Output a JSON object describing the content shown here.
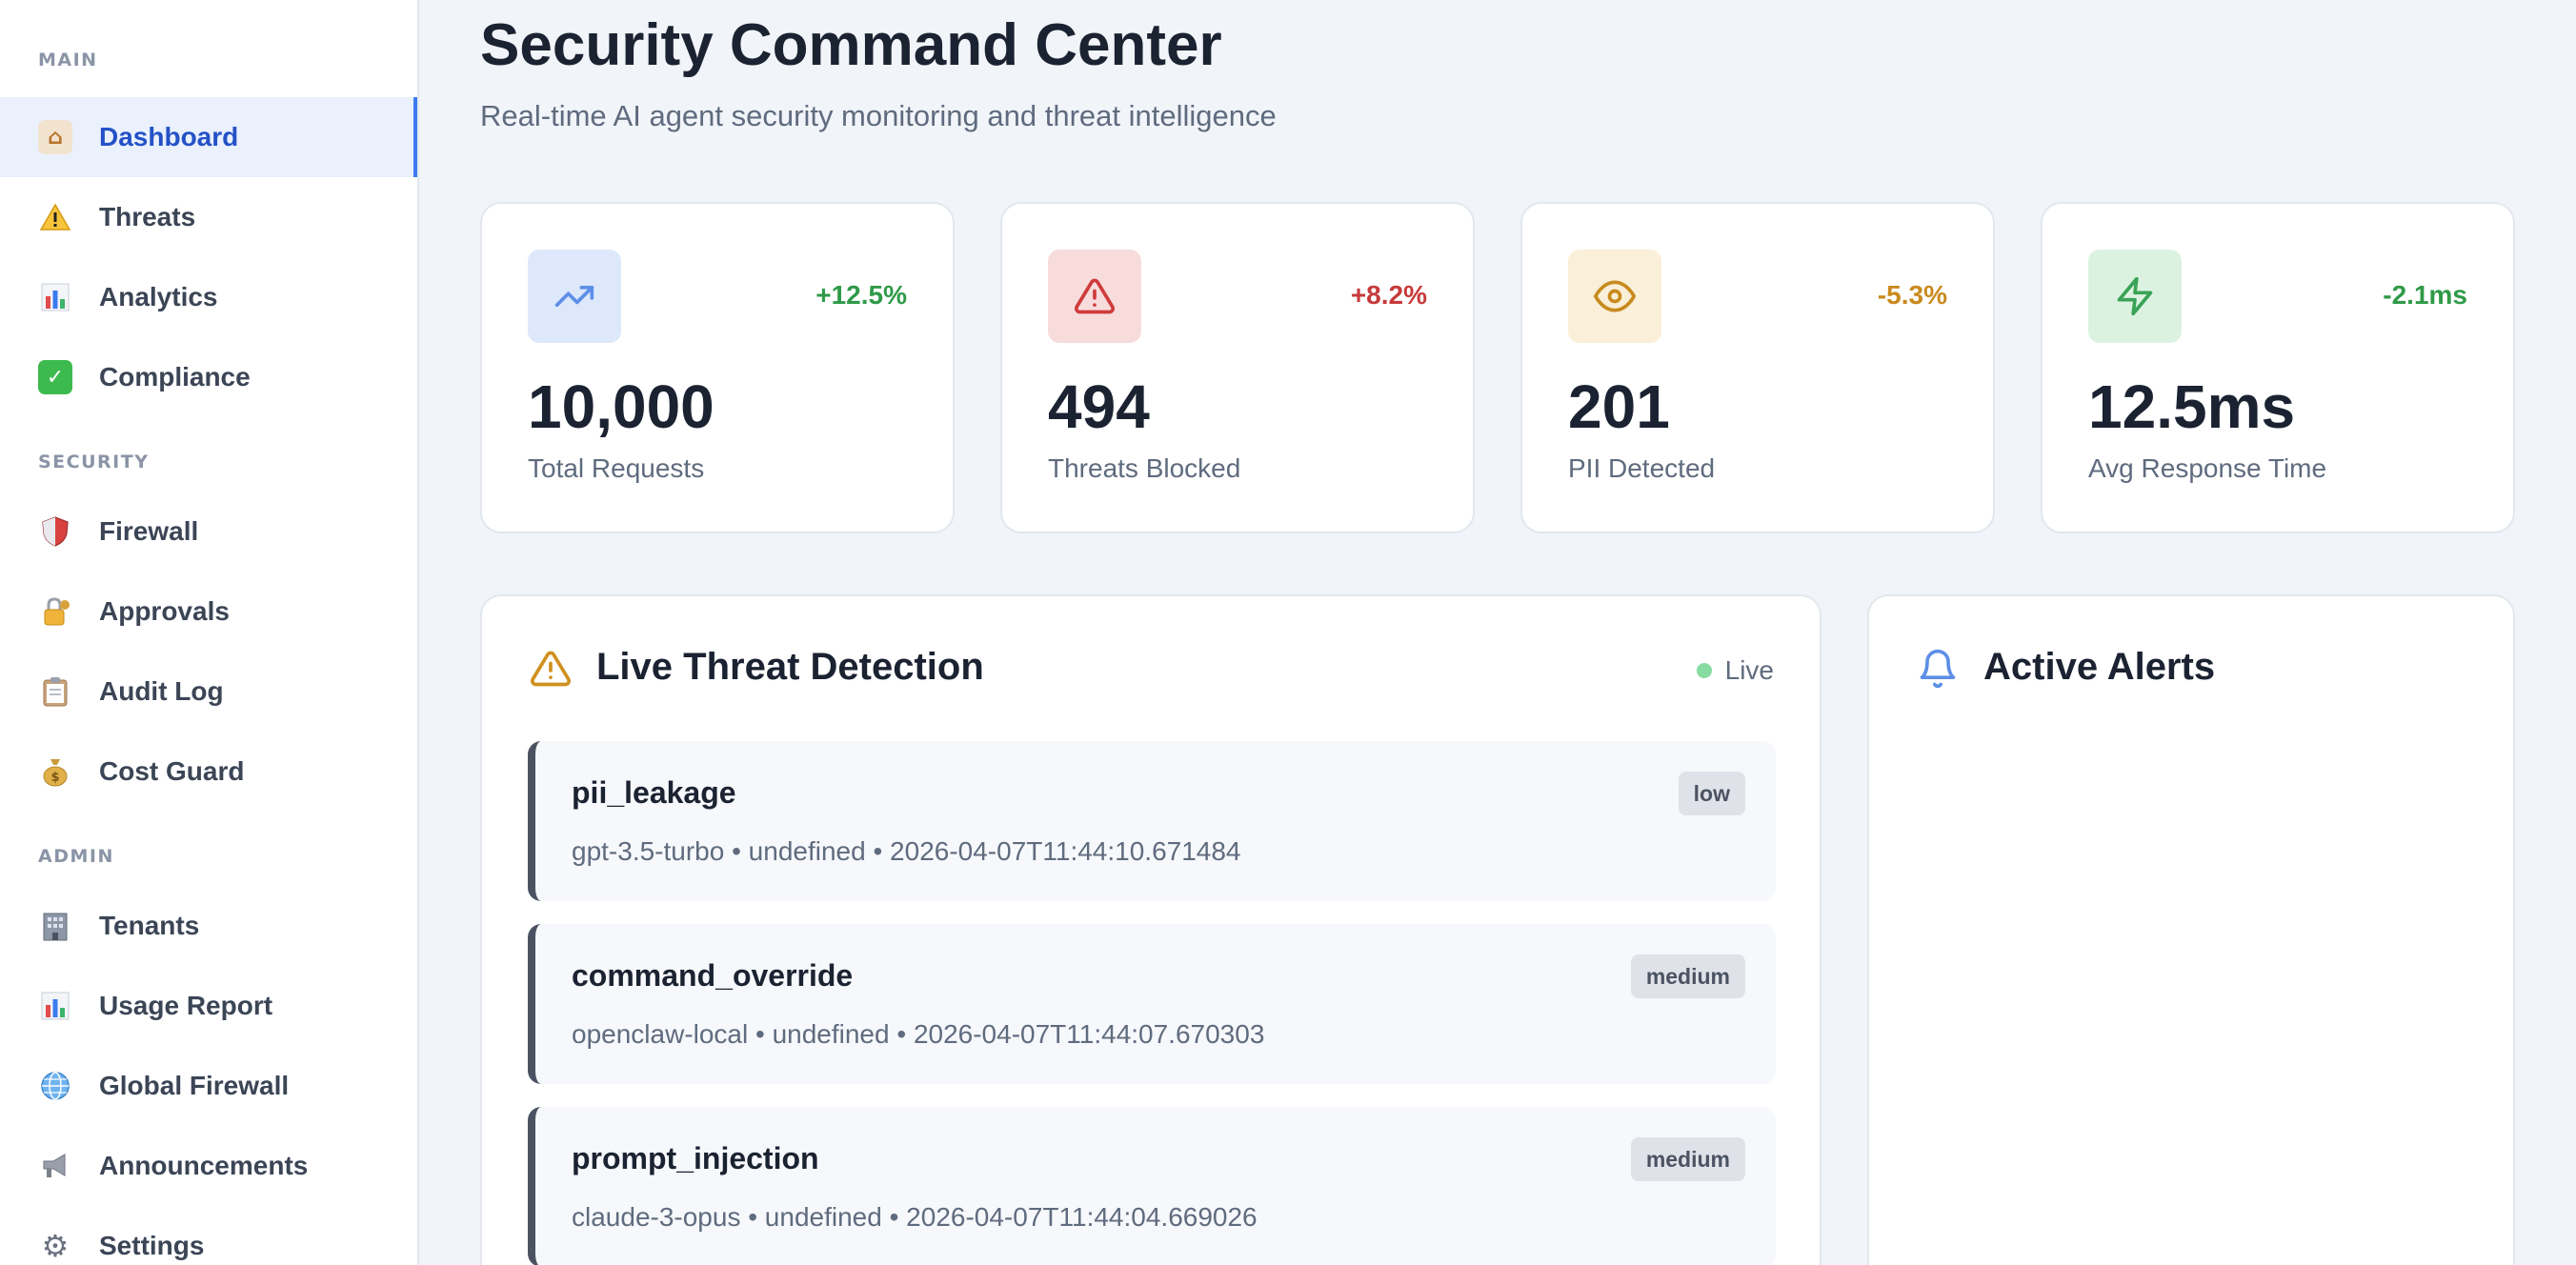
{
  "sidebar": {
    "sections": [
      {
        "label": "MAIN"
      },
      {
        "label": "SECURITY"
      },
      {
        "label": "ADMIN"
      }
    ],
    "items": [
      {
        "label": "Dashboard",
        "icon": "house-icon"
      },
      {
        "label": "Threats",
        "icon": "warning-icon"
      },
      {
        "label": "Analytics",
        "icon": "bar-chart-icon"
      },
      {
        "label": "Compliance",
        "icon": "check-icon"
      },
      {
        "label": "Firewall",
        "icon": "shield-icon"
      },
      {
        "label": "Approvals",
        "icon": "lock-icon"
      },
      {
        "label": "Audit Log",
        "icon": "clipboard-icon"
      },
      {
        "label": "Cost Guard",
        "icon": "money-bag-icon"
      },
      {
        "label": "Tenants",
        "icon": "building-icon"
      },
      {
        "label": "Usage Report",
        "icon": "bar-chart-icon"
      },
      {
        "label": "Global Firewall",
        "icon": "globe-icon"
      },
      {
        "label": "Announcements",
        "icon": "megaphone-icon"
      },
      {
        "label": "Settings",
        "icon": "gear-icon"
      }
    ],
    "active_item": "Dashboard"
  },
  "header": {
    "title": "Security Command Center",
    "subtitle": "Real-time AI agent security monitoring and threat intelligence"
  },
  "stats": [
    {
      "value": "10,000",
      "label": "Total Requests",
      "change": "+12.5%",
      "icon": "trending-up-icon",
      "change_color": "#2f9a48"
    },
    {
      "value": "494",
      "label": "Threats Blocked",
      "change": "+8.2%",
      "icon": "alert-triangle-icon",
      "change_color": "#c73a3a"
    },
    {
      "value": "201",
      "label": "PII Detected",
      "change": "-5.3%",
      "icon": "eye-icon",
      "change_color": "#c88a1e"
    },
    {
      "value": "12.5ms",
      "label": "Avg Response Time",
      "change": "-2.1ms",
      "icon": "zap-icon",
      "change_color": "#2f9a48"
    }
  ],
  "live_threats": {
    "title": "Live Threat Detection",
    "status": "Live",
    "items": [
      {
        "name": "pii_leakage",
        "meta": "gpt-3.5-turbo • undefined • 2026-04-07T11:44:10.671484",
        "severity": "low"
      },
      {
        "name": "command_override",
        "meta": "openclaw-local • undefined • 2026-04-07T11:44:07.670303",
        "severity": "medium"
      },
      {
        "name": "prompt_injection",
        "meta": "claude-3-opus • undefined • 2026-04-07T11:44:04.669026",
        "severity": "medium"
      }
    ]
  },
  "alerts": {
    "title": "Active Alerts"
  }
}
